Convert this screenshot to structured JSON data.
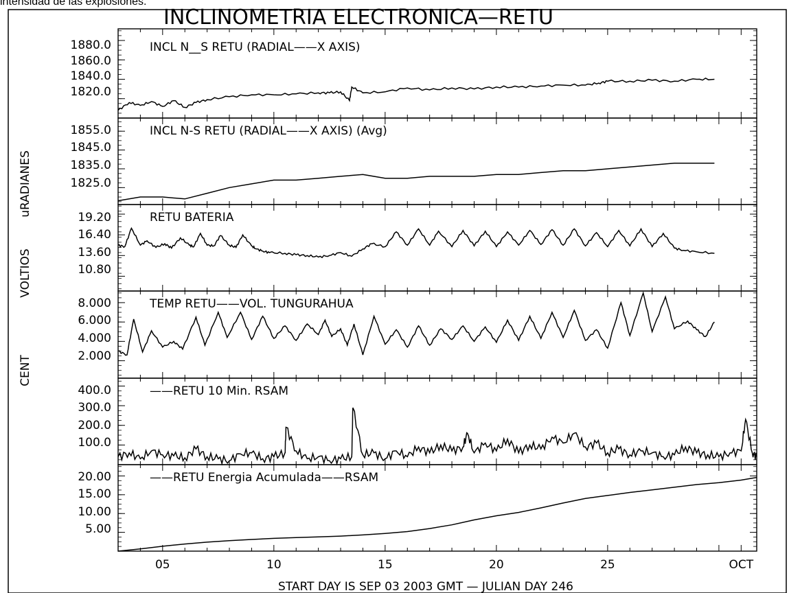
{
  "caption": "intensidad de las explosiones.",
  "title": "INCLINOMETRIA ELECTRONICA—RETU",
  "axis_side_labels": [
    {
      "id": "uradianes",
      "text": "uRADIANES"
    },
    {
      "id": "voltios",
      "text": "VOLTIOS"
    },
    {
      "id": "cent",
      "text": "CENT"
    }
  ],
  "x_axis": {
    "tick_labels": [
      {
        "label": "05",
        "day": 5
      },
      {
        "label": "10",
        "day": 10
      },
      {
        "label": "15",
        "day": 15
      },
      {
        "label": "20",
        "day": 20
      },
      {
        "label": "25",
        "day": 25
      },
      {
        "label": "OCT",
        "day": 31
      }
    ],
    "caption": "START DAY IS SEP 03 2003 GMT   — JULIAN DAY 246"
  },
  "chart_data": [
    {
      "type": "line",
      "title": "INCL N__S RETU (RADIAL——X AXIS)",
      "ytick_labels": [
        "1880.0",
        "1860.0",
        "1840.0",
        "1820.0"
      ],
      "yticks": [
        1880,
        1860,
        1840,
        1820
      ],
      "ylim": [
        1800,
        1892
      ],
      "xlim": [
        3,
        31.7
      ],
      "x": [
        3.0,
        3.5,
        4.0,
        4.5,
        5.0,
        5.5,
        6.0,
        6.5,
        7.0,
        8.0,
        9.0,
        10.0,
        11.0,
        12.0,
        12.5,
        13.0,
        13.4,
        13.5,
        14.0,
        15.0,
        16.0,
        17.0,
        18.0,
        19.0,
        20.0,
        21.0,
        22.0,
        23.0,
        24.0,
        24.6,
        25.0,
        26.0,
        27.0,
        28.0,
        29.0,
        29.8
      ],
      "values": [
        1808,
        1816,
        1813,
        1817,
        1812,
        1818,
        1811,
        1816,
        1819,
        1822,
        1824,
        1824,
        1825,
        1826,
        1826,
        1827,
        1818,
        1832,
        1826,
        1827,
        1831,
        1829,
        1831,
        1830,
        1832,
        1832,
        1833,
        1834,
        1834,
        1836,
        1838,
        1838,
        1839,
        1838,
        1840,
        1840
      ]
    },
    {
      "type": "line",
      "title": "INCL N-S RETU (RADIAL——X AXIS) (Avg)",
      "ytick_labels": [
        "1855.0",
        "1845.0",
        "1835.0",
        "1825.0"
      ],
      "yticks": [
        1855,
        1845,
        1835,
        1825
      ],
      "ylim": [
        1816,
        1862
      ],
      "xlim": [
        3,
        31.7
      ],
      "x": [
        3.0,
        4.0,
        5.0,
        6.0,
        7.0,
        8.0,
        9.0,
        10.0,
        11.0,
        12.0,
        13.0,
        14.0,
        15.0,
        16.0,
        17.0,
        18.0,
        19.0,
        20.0,
        21.0,
        22.0,
        23.0,
        24.0,
        25.0,
        26.0,
        27.0,
        28.0,
        29.0,
        29.8
      ],
      "values": [
        1818,
        1820,
        1820,
        1819,
        1822,
        1825,
        1827,
        1829,
        1829,
        1830,
        1831,
        1832,
        1830,
        1830,
        1831,
        1831,
        1831,
        1832,
        1832,
        1833,
        1834,
        1834,
        1835,
        1836,
        1837,
        1838,
        1838,
        1838
      ]
    },
    {
      "type": "line",
      "title": "RETU BATERIA",
      "ytick_labels": [
        "19.20",
        "16.40",
        "13.60",
        "10.80"
      ],
      "yticks": [
        19.2,
        16.4,
        13.6,
        10.8
      ],
      "ylim": [
        8.8,
        20.5
      ],
      "xlim": [
        3,
        31.7
      ],
      "x": [
        3.0,
        3.3,
        3.6,
        4.0,
        4.3,
        4.7,
        5.1,
        5.4,
        5.8,
        6.2,
        6.4,
        6.7,
        7.0,
        7.3,
        7.6,
        8.0,
        8.3,
        8.6,
        9.0,
        9.2,
        9.5,
        9.8,
        10.5,
        11.0,
        11.5,
        12.0,
        12.5,
        13.0,
        13.5,
        14.0,
        14.4,
        15.0,
        15.5,
        16.0,
        16.5,
        17.0,
        17.4,
        18.0,
        18.5,
        19.0,
        19.5,
        20.0,
        20.5,
        21.0,
        21.5,
        22.0,
        22.5,
        23.0,
        23.5,
        24.0,
        24.5,
        25.0,
        25.5,
        26.0,
        26.5,
        27.0,
        27.5,
        28.0,
        28.4,
        29.0,
        29.8
      ],
      "values": [
        15.0,
        14.8,
        17.3,
        15.0,
        15.6,
        14.7,
        15.2,
        14.6,
        16.0,
        15.0,
        14.8,
        16.6,
        15.0,
        14.9,
        16.3,
        15.0,
        14.7,
        16.4,
        14.9,
        14.5,
        14.2,
        14.0,
        13.9,
        13.7,
        13.6,
        13.4,
        13.6,
        14.0,
        13.5,
        14.5,
        15.2,
        14.8,
        16.8,
        15.0,
        17.2,
        15.0,
        16.9,
        14.8,
        17.0,
        14.9,
        16.9,
        14.8,
        16.8,
        15.0,
        17.0,
        15.1,
        17.1,
        15.0,
        17.2,
        14.9,
        16.7,
        14.8,
        17.0,
        14.9,
        17.2,
        14.8,
        16.6,
        14.6,
        14.3,
        14.1,
        13.9
      ]
    },
    {
      "type": "line",
      "title": "TEMP RETU——VOL. TUNGURAHUA",
      "ytick_labels": [
        "8.000",
        "6.000",
        "4.000",
        "2.000"
      ],
      "yticks": [
        8,
        6,
        4,
        2
      ],
      "ylim": [
        0.2,
        9.2
      ],
      "xlim": [
        3,
        31.7
      ],
      "x": [
        3.0,
        3.4,
        3.7,
        4.1,
        4.5,
        5.0,
        5.5,
        5.9,
        6.5,
        6.9,
        7.5,
        7.9,
        8.5,
        9.0,
        9.5,
        10.0,
        10.5,
        11.0,
        11.5,
        12.0,
        12.3,
        12.6,
        13.0,
        13.3,
        13.6,
        14.0,
        14.5,
        15.0,
        15.5,
        16.0,
        16.5,
        17.0,
        17.5,
        18.0,
        18.5,
        19.0,
        19.5,
        20.0,
        20.5,
        21.0,
        21.5,
        22.0,
        22.5,
        23.0,
        23.5,
        24.0,
        24.5,
        25.0,
        25.6,
        26.0,
        26.6,
        27.0,
        27.6,
        28.0,
        28.6,
        29.0,
        29.4,
        29.8
      ],
      "values": [
        3.0,
        2.6,
        6.3,
        2.9,
        5.1,
        3.4,
        4.0,
        3.2,
        6.5,
        3.6,
        7.0,
        4.4,
        7.0,
        4.2,
        6.6,
        4.3,
        5.6,
        4.1,
        5.8,
        4.7,
        6.2,
        4.5,
        5.3,
        3.6,
        5.8,
        2.6,
        6.6,
        3.7,
        5.2,
        3.4,
        5.6,
        3.6,
        5.3,
        4.2,
        5.6,
        4.0,
        5.5,
        3.9,
        6.2,
        4.1,
        6.6,
        4.3,
        7.0,
        4.4,
        7.2,
        4.1,
        5.2,
        3.3,
        8.0,
        4.6,
        9.0,
        5.0,
        8.6,
        5.3,
        6.1,
        5.2,
        4.5,
        6.0
      ]
    },
    {
      "type": "line",
      "title": "——RETU  10 Min. RSAM",
      "ytick_labels": [
        "400.0",
        "300.0",
        "200.0",
        "100.0"
      ],
      "yticks": [
        400,
        300,
        200,
        100
      ],
      "ylim": [
        0,
        440
      ],
      "xlim": [
        3,
        31.7
      ],
      "x": [
        3.0,
        3.5,
        4.0,
        4.5,
        5.0,
        5.5,
        6.0,
        6.5,
        7.0,
        7.5,
        8.0,
        8.5,
        9.0,
        9.5,
        10.0,
        10.5,
        10.55,
        11.0,
        11.5,
        12.0,
        12.5,
        13.0,
        13.5,
        13.55,
        14.0,
        14.5,
        15.0,
        15.5,
        16.0,
        16.5,
        17.0,
        17.5,
        18.0,
        18.5,
        18.7,
        19.0,
        19.5,
        20.0,
        20.5,
        21.0,
        21.5,
        22.0,
        22.5,
        23.0,
        23.5,
        24.0,
        24.5,
        25.0,
        25.5,
        26.0,
        26.5,
        27.0,
        27.5,
        28.0,
        28.5,
        29.0,
        29.5,
        30.0,
        30.5,
        31.0,
        31.2,
        31.5,
        31.7
      ],
      "values": [
        40,
        60,
        30,
        70,
        50,
        45,
        35,
        80,
        40,
        30,
        20,
        55,
        60,
        30,
        40,
        60,
        190,
        70,
        30,
        40,
        20,
        30,
        40,
        290,
        50,
        60,
        30,
        70,
        40,
        90,
        60,
        100,
        70,
        90,
        160,
        60,
        110,
        70,
        130,
        60,
        100,
        80,
        140,
        110,
        160,
        90,
        110,
        60,
        80,
        50,
        70,
        60,
        40,
        50,
        90,
        60,
        50,
        40,
        60,
        70,
        230,
        60,
        40
      ]
    },
    {
      "type": "line",
      "title": "——RETU Energia Acumulada——RSAM",
      "ytick_labels": [
        "20.00",
        "15.00",
        "10.00",
        "5.00"
      ],
      "yticks": [
        20,
        15,
        10,
        5
      ],
      "ylim": [
        0,
        23
      ],
      "xlim": [
        3,
        31.7
      ],
      "x": [
        3.0,
        4.0,
        5.0,
        6.0,
        7.0,
        8.0,
        9.0,
        10.0,
        11.0,
        12.0,
        13.0,
        14.0,
        15.0,
        16.0,
        17.0,
        18.0,
        19.0,
        20.0,
        21.0,
        22.0,
        23.0,
        24.0,
        25.0,
        26.0,
        27.0,
        28.0,
        29.0,
        30.0,
        31.0,
        31.7
      ],
      "values": [
        0.0,
        0.6,
        1.3,
        1.9,
        2.4,
        2.8,
        3.1,
        3.4,
        3.6,
        3.8,
        4.0,
        4.3,
        4.7,
        5.2,
        6.0,
        7.0,
        8.3,
        9.4,
        10.3,
        11.5,
        12.8,
        14.0,
        14.8,
        15.6,
        16.3,
        17.0,
        17.7,
        18.2,
        18.9,
        19.6
      ]
    }
  ]
}
